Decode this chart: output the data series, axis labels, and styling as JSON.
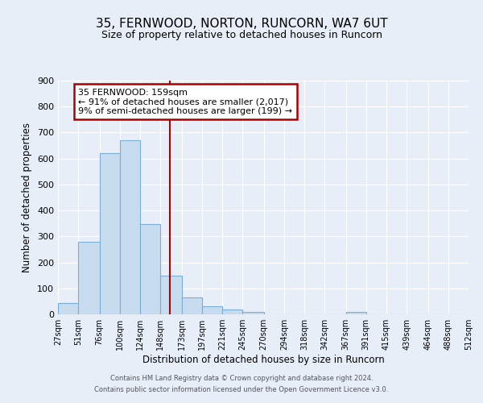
{
  "title": "35, FERNWOOD, NORTON, RUNCORN, WA7 6UT",
  "subtitle": "Size of property relative to detached houses in Runcorn",
  "xlabel": "Distribution of detached houses by size in Runcorn",
  "ylabel": "Number of detached properties",
  "bins": [
    27,
    51,
    76,
    100,
    124,
    148,
    173,
    197,
    221,
    245,
    270,
    294,
    318,
    342,
    367,
    391,
    415,
    439,
    464,
    488,
    512
  ],
  "counts": [
    45,
    280,
    622,
    670,
    348,
    148,
    65,
    30,
    18,
    10,
    0,
    0,
    0,
    0,
    8,
    0,
    0,
    0,
    0,
    0
  ],
  "bar_color": "#c8dcf0",
  "bar_edge_color": "#7aaed6",
  "property_line_x": 159,
  "property_line_color": "#aa0000",
  "annotation_title": "35 FERNWOOD: 159sqm",
  "annotation_line1": "← 91% of detached houses are smaller (2,017)",
  "annotation_line2": "9% of semi-detached houses are larger (199) →",
  "annotation_box_color": "#ffffff",
  "annotation_box_edge": "#aa0000",
  "ylim": [
    0,
    900
  ],
  "yticks": [
    0,
    100,
    200,
    300,
    400,
    500,
    600,
    700,
    800,
    900
  ],
  "tick_labels": [
    "27sqm",
    "51sqm",
    "76sqm",
    "100sqm",
    "124sqm",
    "148sqm",
    "173sqm",
    "197sqm",
    "221sqm",
    "245sqm",
    "270sqm",
    "294sqm",
    "318sqm",
    "342sqm",
    "367sqm",
    "391sqm",
    "415sqm",
    "439sqm",
    "464sqm",
    "488sqm",
    "512sqm"
  ],
  "footer_line1": "Contains HM Land Registry data © Crown copyright and database right 2024.",
  "footer_line2": "Contains public sector information licensed under the Open Government Licence v3.0.",
  "background_color": "#e8eef8",
  "plot_background": "#e8eef8",
  "grid_color": "#ffffff"
}
